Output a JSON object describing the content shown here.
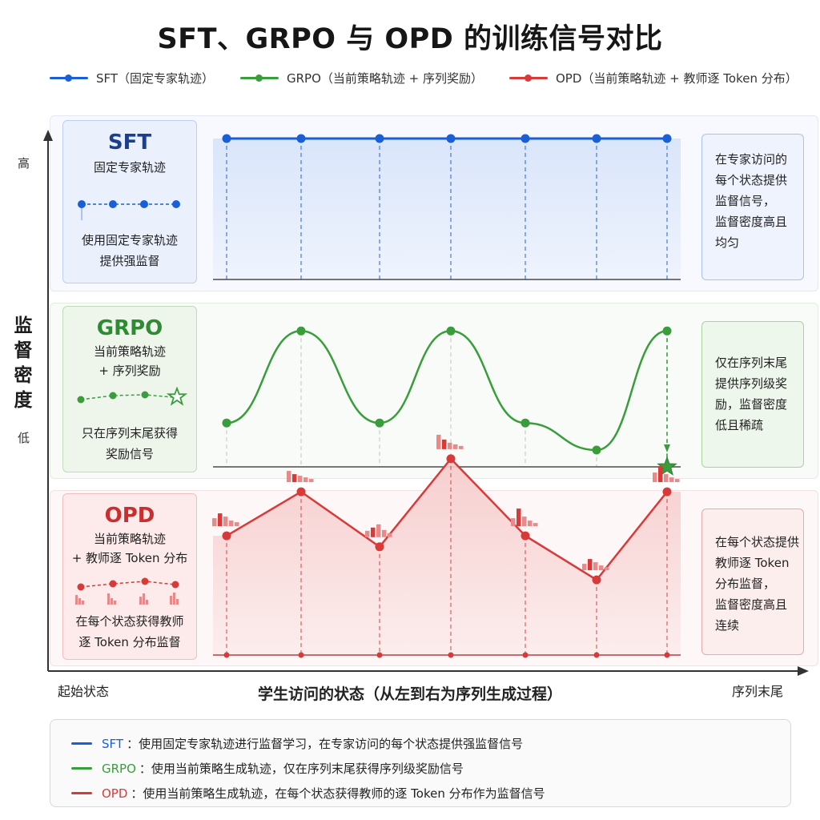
{
  "title": "SFT、GRPO 与 OPD 的训练信号对比",
  "legend": [
    {
      "id": "sft",
      "label": "SFT（固定专家轨迹）",
      "color": "#1a5fd6"
    },
    {
      "id": "grpo",
      "label": "GRPO（当前策略轨迹 + 序列奖励）",
      "color": "#3a9d3c"
    },
    {
      "id": "opd",
      "label": "OPD（当前策略轨迹 + 教师逐 Token 分布）",
      "color": "#d83a3a"
    }
  ],
  "yaxis": {
    "title": "监督密度",
    "high": "高",
    "low": "低"
  },
  "xaxis": {
    "title": "学生访问的状态（从左到右为序列生成过程）",
    "start": "起始状态",
    "end": "序列末尾"
  },
  "rows": {
    "sft": {
      "name": "SFT",
      "subtitle": "固定专家轨迹",
      "desc_line1": "使用固定专家轨迹",
      "desc_line2": "提供强监督",
      "note_lines": [
        "在专家访问的",
        "每个状态提供",
        "监督信号，",
        "监督密度高且",
        "均匀"
      ],
      "color": "#1a5fd6"
    },
    "grpo": {
      "name": "GRPO",
      "subtitle_line1": "当前策略轨迹",
      "subtitle_line2": "+ 序列奖励",
      "desc_line1": "只在序列末尾获得",
      "desc_line2": "奖励信号",
      "note_lines": [
        "仅在序列末尾",
        "提供序列级奖",
        "励，监督密度",
        "低且稀疏"
      ],
      "color": "#3a9d3c"
    },
    "opd": {
      "name": "OPD",
      "subtitle_line1": "当前策略轨迹",
      "subtitle_line2": "+ 教师逐 Token 分布",
      "desc_line1": "在每个状态获得教师",
      "desc_line2": "逐 Token 分布监督",
      "note_lines": [
        "在每个状态提供",
        "教师逐 Token",
        "分布监督，",
        "监督密度高且",
        "连续"
      ],
      "color": "#d83a3a"
    }
  },
  "chart_data": [
    {
      "type": "line",
      "series": [
        {
          "name": "SFT",
          "values": [
            1,
            1,
            1,
            1,
            1,
            1,
            1
          ]
        }
      ],
      "x": [
        1,
        2,
        3,
        4,
        5,
        6,
        7
      ],
      "ylim": [
        0,
        1
      ]
    },
    {
      "type": "line",
      "series": [
        {
          "name": "GRPO",
          "values": [
            0.55,
            0.72,
            0.55,
            0.72,
            0.55,
            0.5,
            0.72
          ]
        }
      ],
      "x": [
        1,
        2,
        3,
        4,
        5,
        6,
        7
      ],
      "ylim": [
        0,
        1
      ]
    },
    {
      "type": "line",
      "series": [
        {
          "name": "OPD",
          "values": [
            0.7,
            0.78,
            0.68,
            0.84,
            0.7,
            0.62,
            0.78
          ]
        }
      ],
      "x": [
        1,
        2,
        3,
        4,
        5,
        6,
        7
      ],
      "ylim": [
        0,
        1
      ]
    }
  ],
  "bottom_legend": [
    {
      "name": "SFT",
      "text": "：使用固定专家轨迹进行监督学习，在专家访问的每个状态提供强监督信号",
      "color": "#1a5fd6"
    },
    {
      "name": "GRPO",
      "text": "：使用当前策略生成轨迹，仅在序列末尾获得序列级奖励信号",
      "color": "#3a9d3c"
    },
    {
      "name": "OPD",
      "text": "：使用当前策略生成轨迹，在每个状态获得教师的逐 Token 分布作为监督信号",
      "color": "#d83a3a"
    }
  ]
}
